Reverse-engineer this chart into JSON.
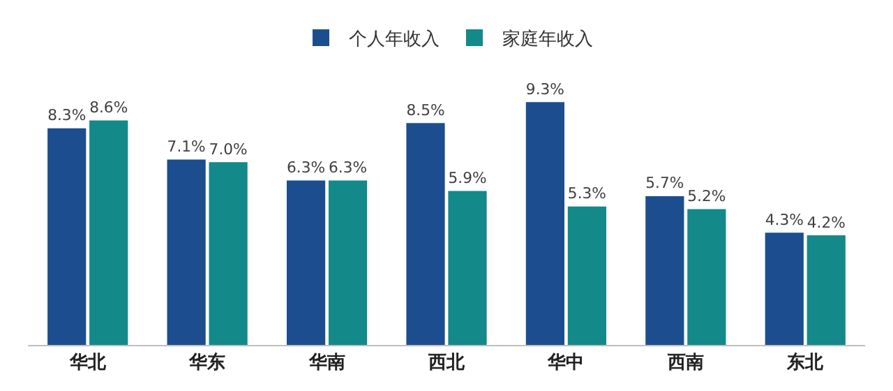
{
  "chart_data": {
    "type": "bar",
    "categories": [
      "华北",
      "华东",
      "华南",
      "西北",
      "华中",
      "西南",
      "东北"
    ],
    "series": [
      {
        "name": "个人年收入",
        "color": "#1c4e8f",
        "values": [
          8.3,
          7.1,
          6.3,
          8.5,
          9.3,
          5.7,
          4.3
        ],
        "value_labels": [
          "8.3%",
          "7.1%",
          "6.3%",
          "8.5%",
          "9.3%",
          "5.7%",
          "4.3%"
        ]
      },
      {
        "name": "家庭年收入",
        "color": "#13898a",
        "values": [
          8.6,
          7.0,
          6.3,
          5.9,
          5.3,
          5.2,
          4.2
        ],
        "value_labels": [
          "8.6%",
          "7.0%",
          "6.3%",
          "5.9%",
          "5.3%",
          "5.2%",
          "4.2%"
        ]
      }
    ],
    "legend": "top"
  }
}
